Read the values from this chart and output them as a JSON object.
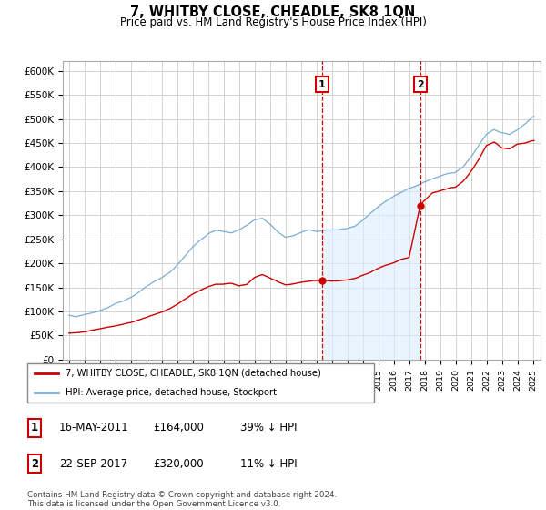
{
  "title": "7, WHITBY CLOSE, CHEADLE, SK8 1QN",
  "subtitle": "Price paid vs. HM Land Registry's House Price Index (HPI)",
  "ylabel_ticks": [
    "£0",
    "£50K",
    "£100K",
    "£150K",
    "£200K",
    "£250K",
    "£300K",
    "£350K",
    "£400K",
    "£450K",
    "£500K",
    "£550K",
    "£600K"
  ],
  "ytick_values": [
    0,
    50000,
    100000,
    150000,
    200000,
    250000,
    300000,
    350000,
    400000,
    450000,
    500000,
    550000,
    600000
  ],
  "ylim": [
    0,
    620000
  ],
  "sale1_x": 2011.37,
  "sale1_y": 164000,
  "sale2_x": 2017.72,
  "sale2_y": 320000,
  "sale_color": "#cc0000",
  "hpi_color": "#7aadd4",
  "hpi_fill_color": "#ddeeff",
  "plot_bg_color": "#ffffff",
  "grid_color": "#cccccc",
  "legend_entry1": "7, WHITBY CLOSE, CHEADLE, SK8 1QN (detached house)",
  "legend_entry2": "HPI: Average price, detached house, Stockport",
  "table_rows": [
    {
      "label": "1",
      "date": "16-MAY-2011",
      "price": "£164,000",
      "pct": "39% ↓ HPI"
    },
    {
      "label": "2",
      "date": "22-SEP-2017",
      "price": "£320,000",
      "pct": "11% ↓ HPI"
    }
  ],
  "footnote": "Contains HM Land Registry data © Crown copyright and database right 2024.\nThis data is licensed under the Open Government Licence v3.0.",
  "xlim_start": 1994.6,
  "xlim_end": 2025.5
}
